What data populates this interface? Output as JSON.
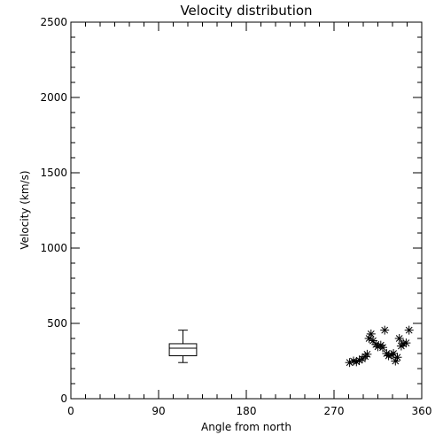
{
  "chart_data": {
    "type": "scatter",
    "title": "Velocity distribution",
    "xlabel": "Angle from north",
    "ylabel": "Velocity (km/s)",
    "xlim": [
      0,
      360
    ],
    "ylim": [
      0,
      2500
    ],
    "x_ticks": [
      {
        "value": 0,
        "label": "0"
      },
      {
        "value": 90,
        "label": "90"
      },
      {
        "value": 180,
        "label": "180"
      },
      {
        "value": 270,
        "label": "270"
      },
      {
        "value": 360,
        "label": "360"
      }
    ],
    "y_ticks": [
      {
        "value": 0,
        "label": "0"
      },
      {
        "value": 500,
        "label": "500"
      },
      {
        "value": 1000,
        "label": "1000"
      },
      {
        "value": 1500,
        "label": "1500"
      },
      {
        "value": 2000,
        "label": "2000"
      },
      {
        "value": 2500,
        "label": "2500"
      }
    ],
    "x_minor_step": 15,
    "y_minor_step": 100,
    "grid": false,
    "marker": "asterisk",
    "color": "#000000",
    "boxplot": {
      "x_center": 115,
      "x_width": 28,
      "whisker_low": 240,
      "q1": 285,
      "median": 335,
      "q3": 365,
      "whisker_high": 455
    },
    "points": [
      {
        "x": 286,
        "y": 240
      },
      {
        "x": 290,
        "y": 250
      },
      {
        "x": 293,
        "y": 245
      },
      {
        "x": 296,
        "y": 255
      },
      {
        "x": 299,
        "y": 265
      },
      {
        "x": 302,
        "y": 280
      },
      {
        "x": 304,
        "y": 295
      },
      {
        "x": 306,
        "y": 400
      },
      {
        "x": 308,
        "y": 430
      },
      {
        "x": 310,
        "y": 385
      },
      {
        "x": 313,
        "y": 360
      },
      {
        "x": 315,
        "y": 345
      },
      {
        "x": 318,
        "y": 355
      },
      {
        "x": 320,
        "y": 340
      },
      {
        "x": 322,
        "y": 455
      },
      {
        "x": 324,
        "y": 300
      },
      {
        "x": 326,
        "y": 285
      },
      {
        "x": 329,
        "y": 290
      },
      {
        "x": 331,
        "y": 300
      },
      {
        "x": 333,
        "y": 250
      },
      {
        "x": 335,
        "y": 275
      },
      {
        "x": 337,
        "y": 400
      },
      {
        "x": 339,
        "y": 350
      },
      {
        "x": 341,
        "y": 365
      },
      {
        "x": 344,
        "y": 370
      },
      {
        "x": 347,
        "y": 455
      }
    ]
  }
}
